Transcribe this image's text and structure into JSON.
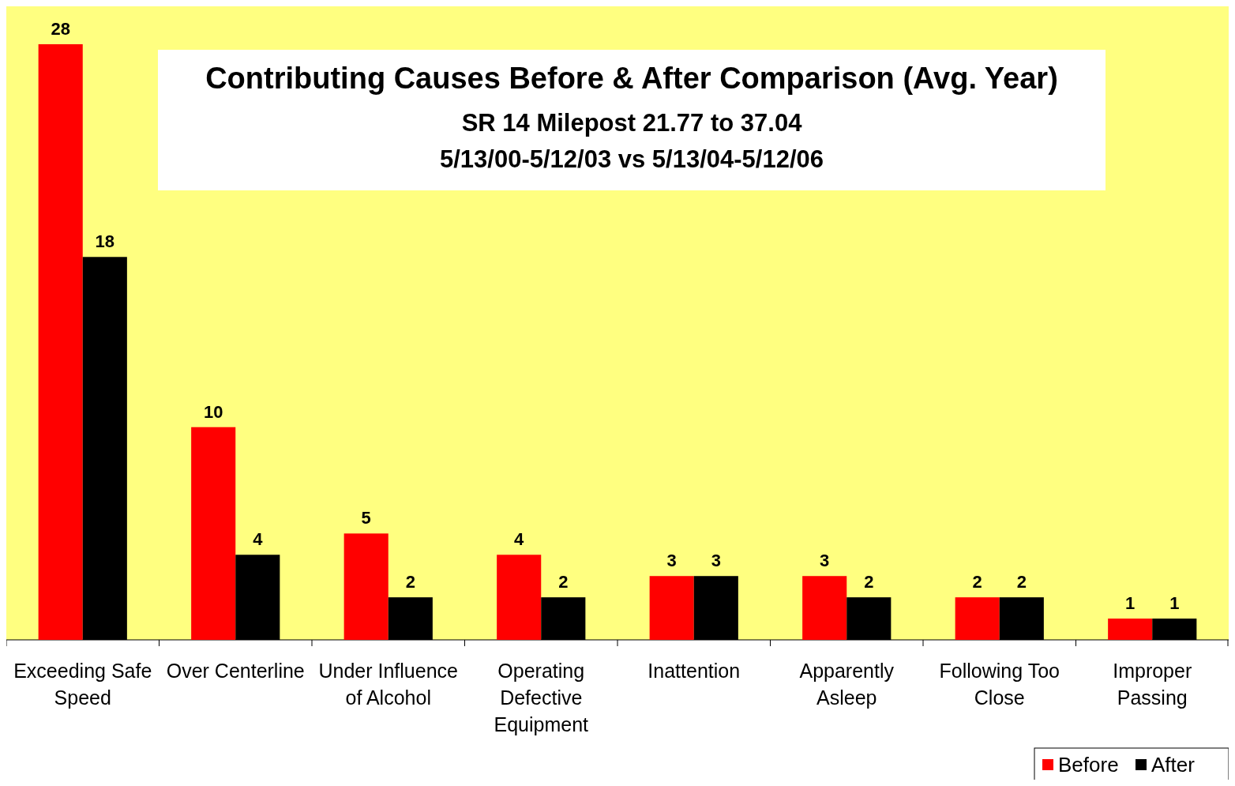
{
  "chart_data": {
    "type": "bar",
    "title": "Contributing Causes Before & After Comparison (Avg. Year)",
    "subtitle": "SR 14 Milepost 21.77 to 37.04\n5/13/00-5/12/03 vs 5/13/04-5/12/06",
    "categories": [
      "Exceeding Safe Speed",
      "Over Centerline",
      "Under Influence of Alcohol",
      "Operating Defective Equipment",
      "Inattention",
      "Apparently Asleep",
      "Following Too Close",
      "Improper Passing"
    ],
    "series": [
      {
        "name": "Before",
        "color": "#ff0000",
        "values": [
          28,
          10,
          5,
          4,
          3,
          3,
          2,
          1
        ]
      },
      {
        "name": "After",
        "color": "#000000",
        "values": [
          18,
          4,
          2,
          2,
          3,
          2,
          2,
          1
        ]
      }
    ],
    "data_labels": true,
    "legend": "bottom right"
  }
}
